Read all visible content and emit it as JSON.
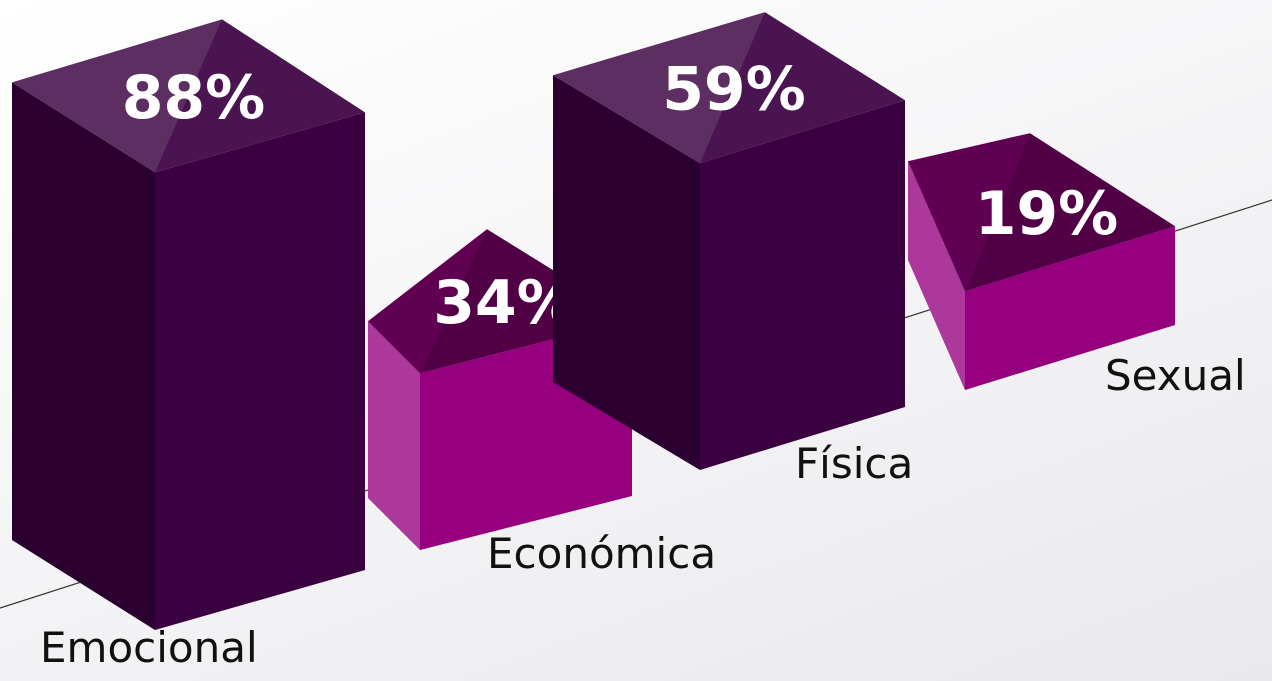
{
  "chart_data": {
    "type": "bar",
    "categories": [
      "Emocional",
      "Económica",
      "Física",
      "Sexual"
    ],
    "values": [
      88,
      34,
      59,
      19
    ],
    "value_labels": [
      "88%",
      "34%",
      "59%",
      "19%"
    ],
    "colors": [
      "#3a0040",
      "#96007f",
      "#3a0040",
      "#96007f"
    ]
  }
}
